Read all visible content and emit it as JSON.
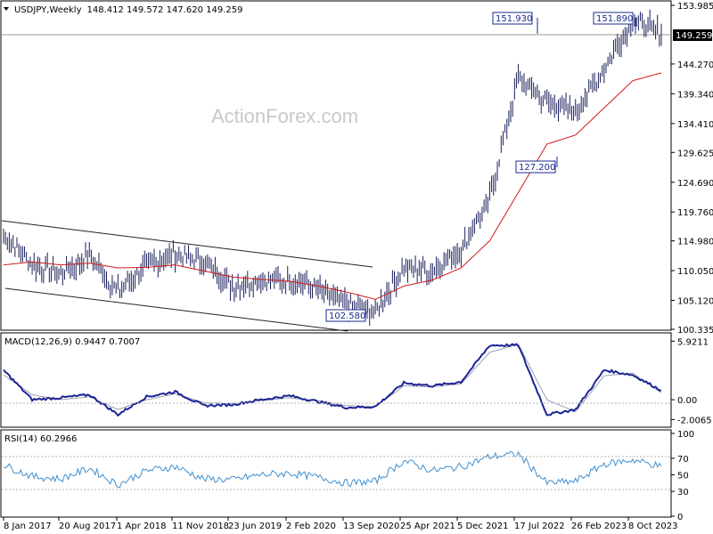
{
  "header": {
    "symbol_text": "USDJPY,Weekly",
    "ohlc_text": "148.412 149.572 147.620 149.259",
    "watermark": "ActionForex.com"
  },
  "colors": {
    "price": "#1a1f5a",
    "ma": "#d01818",
    "channel": "#222222",
    "macd_line": "#1c2494",
    "macd_signal": "#9aa0b0",
    "rsi": "#3f8fd0",
    "label_bg": "#000000",
    "label_fg": "#ffffff",
    "callout_border": "#1a2b8c"
  },
  "chart_data": [
    {
      "type": "line",
      "title": "USDJPY,Weekly 148.412 149.572 147.620 149.259",
      "x": [
        "2017-01-08",
        "2017-04-02",
        "2017-08-20",
        "2017-12-10",
        "2018-04-01",
        "2018-07-22",
        "2018-11-11",
        "2019-03-03",
        "2019-06-23",
        "2019-10-13",
        "2020-02-02",
        "2020-05-24",
        "2020-09-13",
        "2021-01-03",
        "2021-04-25",
        "2021-08-15",
        "2021-12-05",
        "2022-03-27",
        "2022-07-17",
        "2022-11-06",
        "2023-02-26",
        "2023-06-18",
        "2023-10-08",
        "2023-12-03"
      ],
      "x_tick_labels": [
        "8 Jan 2017",
        "20 Aug 2017",
        "1 Apr 2018",
        "11 Nov 2018",
        "23 Jun 2019",
        "2 Feb 2020",
        "13 Sep 2020",
        "25 Apr 2021",
        "5 Dec 2021",
        "17 Jul 2022",
        "26 Feb 2023",
        "8 Oct 2023"
      ],
      "y_ticks": [
        100.335,
        105.12,
        110.05,
        114.98,
        119.76,
        124.69,
        129.625,
        134.41,
        139.34,
        144.27,
        149.259,
        153.985
      ],
      "ylim": [
        100.335,
        153.985
      ],
      "series": [
        {
          "name": "USDJPY",
          "values": [
            116.0,
            111.0,
            109.5,
            112.5,
            106.5,
            111.0,
            112.8,
            111.5,
            107.5,
            108.5,
            108.5,
            107.0,
            104.5,
            103.2,
            110.5,
            110.0,
            113.5,
            122.0,
            142.0,
            138.0,
            136.5,
            143.5,
            151.8,
            149.259
          ]
        },
        {
          "name": "MA",
          "values": [
            111.0,
            111.5,
            111.0,
            111.3,
            110.5,
            110.6,
            111.0,
            110.0,
            109.0,
            108.6,
            108.3,
            107.5,
            106.5,
            105.3,
            107.5,
            108.5,
            110.5,
            115.0,
            123.0,
            131.0,
            132.5,
            137.0,
            141.5,
            142.8
          ]
        }
      ],
      "annotations": [
        "151.930",
        "151.890",
        "127.200",
        "102.580"
      ],
      "last_price_label": "149.259",
      "grid": false
    },
    {
      "type": "line",
      "title": "MACD(12,26,9) 0.9447 0.7007",
      "y_ticks": [
        5.9211,
        0.0,
        -2.0065
      ],
      "y_tick_labels": [
        "5.9211",
        "0.00",
        "-2.0065"
      ],
      "ylim": [
        -2.6,
        6.4
      ],
      "series": [
        {
          "name": "MACD",
          "values": [
            3.0,
            0.0,
            0.2,
            0.5,
            -1.5,
            0.3,
            0.8,
            -0.6,
            -0.5,
            0.0,
            0.4,
            -0.2,
            -0.8,
            -0.7,
            1.7,
            1.4,
            1.8,
            5.5,
            5.5,
            -1.5,
            -1.0,
            3.0,
            2.5,
            0.9447
          ]
        },
        {
          "name": "Signal",
          "values": [
            2.5,
            0.5,
            0.0,
            0.3,
            -1.0,
            0.0,
            0.6,
            -0.3,
            -0.4,
            -0.1,
            0.2,
            -0.1,
            -0.6,
            -0.7,
            1.4,
            1.3,
            1.6,
            4.8,
            5.6,
            0.0,
            -1.2,
            2.4,
            2.7,
            0.7007
          ]
        }
      ],
      "grid": false
    },
    {
      "type": "line",
      "title": "RSI(14) 60.2966",
      "y_ticks": [
        100,
        70,
        50,
        30,
        0
      ],
      "ylim": [
        0,
        100
      ],
      "series": [
        {
          "name": "RSI",
          "values": [
            62,
            48,
            45,
            58,
            38,
            55,
            60,
            45,
            44,
            50,
            52,
            47,
            40,
            42,
            67,
            55,
            60,
            72,
            75,
            40,
            42,
            63,
            68,
            60.2966
          ]
        }
      ],
      "reference_lines": [
        70,
        30
      ],
      "grid": false
    }
  ]
}
